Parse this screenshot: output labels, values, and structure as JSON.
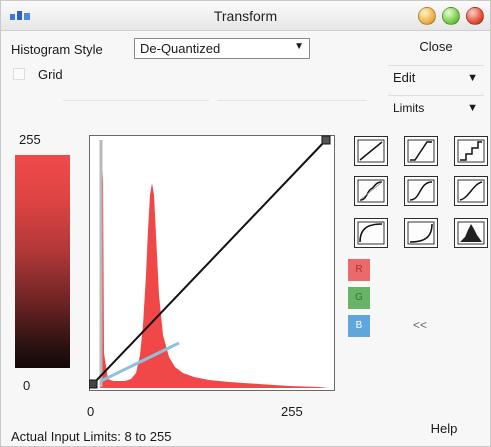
{
  "window": {
    "title": "Transform",
    "icon": "app-logo-icon",
    "controls": [
      "minimize-button",
      "maximize-button",
      "close-window-button"
    ]
  },
  "histogram_style": {
    "label": "Histogram Style",
    "selected": "De-Quantized"
  },
  "buttons": {
    "close": "Close",
    "edit": "Edit",
    "limits": "Limits",
    "help": "Help",
    "collapse": "<<"
  },
  "grid": {
    "label": "Grid",
    "checked": false
  },
  "output_range": {
    "top": "255",
    "bottom": "0"
  },
  "input_range": {
    "left": "0",
    "right": "255"
  },
  "status": {
    "actual_input_limits": "Actual Input Limits: 8 to 255"
  },
  "channels": [
    {
      "label": "R",
      "color": "#e86a6a"
    },
    {
      "label": "G",
      "color": "#67b367"
    },
    {
      "label": "B",
      "color": "#5fa6dc"
    }
  ],
  "curve_presets": [
    "linear-curve-icon",
    "steep-linear-curve-icon",
    "staircase-curve-icon",
    "soft-s-curve-icon",
    "s-curve-icon",
    "mild-s-curve-icon",
    "log-curve-icon",
    "exponential-curve-icon",
    "histogram-curve-icon"
  ],
  "colors": {
    "histogram_fill": "#f04848",
    "input_limit_line": "#8fc0dc",
    "curve_line": "#111111"
  }
}
